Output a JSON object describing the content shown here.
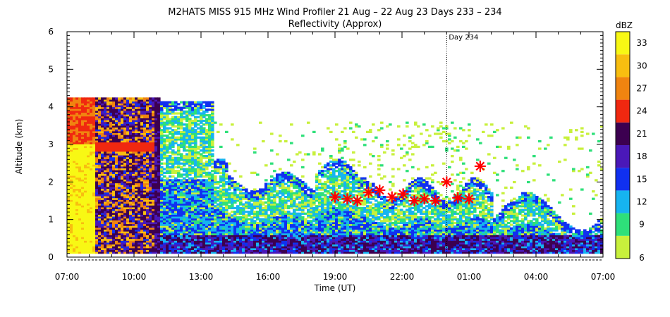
{
  "chart_data": {
    "type": "heatmap",
    "title": "M2HATS MISS 915 MHz Wind Profiler  21 Aug – 22 Aug 23 Days 233 – 234",
    "subtitle": "Reflectivity (Approx)",
    "xlabel": "Time (UT)",
    "ylabel": "Altitude (km)",
    "x_ticks": [
      "07:00",
      "10:00",
      "13:00",
      "16:00",
      "19:00",
      "22:00",
      "01:00",
      "04:00",
      "07:00"
    ],
    "x_range_hours": [
      0,
      24
    ],
    "y_ticks": [
      "0",
      "1",
      "2",
      "3",
      "4",
      "5",
      "6"
    ],
    "ylim": [
      0,
      6
    ],
    "day_marker": {
      "label": "Day 234",
      "x_hour": 17
    },
    "colorbar": {
      "unit": "dBZ",
      "levels": [
        6,
        9,
        12,
        15,
        18,
        21,
        24,
        27,
        30,
        33
      ],
      "colors": [
        "#c8f03c",
        "#2ee07a",
        "#16b4f0",
        "#1030f0",
        "#4a18b8",
        "#3c0050",
        "#f02810",
        "#f08410",
        "#f8be10",
        "#f8f814"
      ]
    },
    "series": [
      {
        "marker": "asterisk",
        "color": "#ff0000",
        "points": [
          {
            "x": 12.0,
            "y": 1.6
          },
          {
            "x": 12.55,
            "y": 1.55
          },
          {
            "x": 13.0,
            "y": 1.5
          },
          {
            "x": 13.5,
            "y": 1.72
          },
          {
            "x": 14.0,
            "y": 1.78
          },
          {
            "x": 14.55,
            "y": 1.6
          },
          {
            "x": 15.05,
            "y": 1.68
          },
          {
            "x": 15.55,
            "y": 1.5
          },
          {
            "x": 16.0,
            "y": 1.55
          },
          {
            "x": 16.5,
            "y": 1.5
          },
          {
            "x": 17.0,
            "y": 2.0
          },
          {
            "x": 17.5,
            "y": 1.58
          },
          {
            "x": 18.0,
            "y": 1.55
          },
          {
            "x": 18.5,
            "y": 2.42
          }
        ]
      }
    ]
  }
}
